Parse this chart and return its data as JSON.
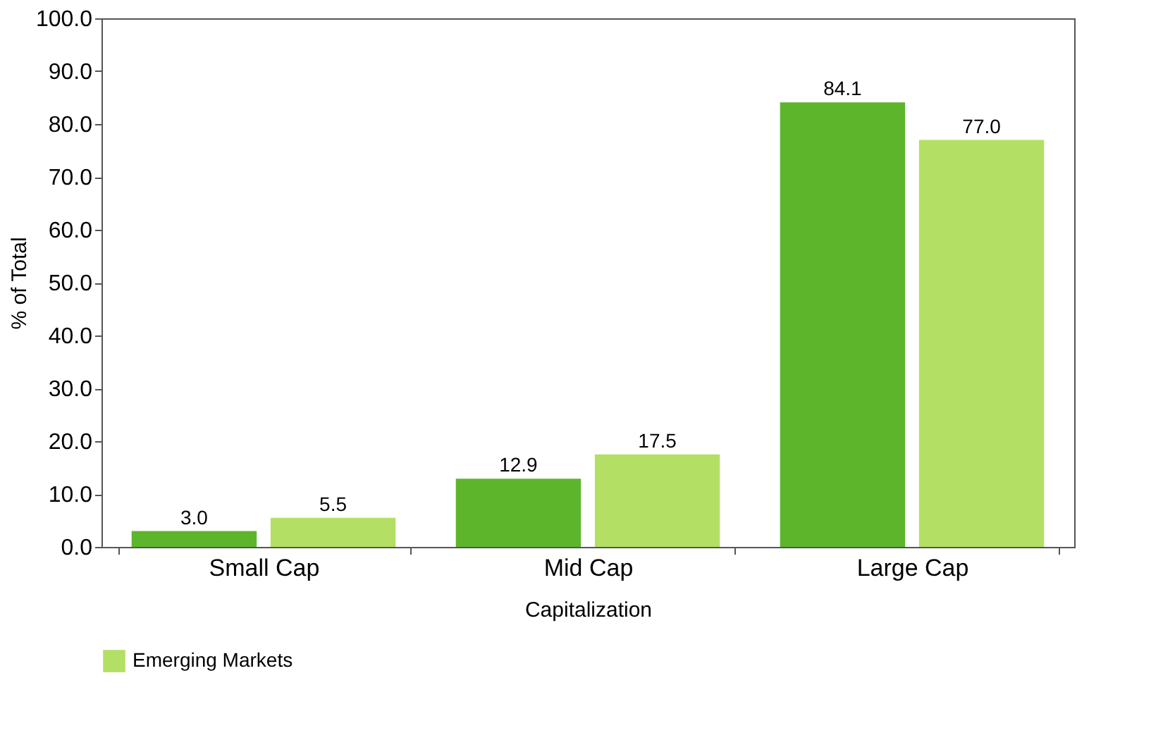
{
  "chart_data": {
    "type": "bar",
    "xlabel": "Capitalization",
    "ylabel": "% of Total",
    "categories": [
      "Small Cap",
      "Mid Cap",
      "Large Cap"
    ],
    "series": [
      {
        "color": "#5db52c",
        "values": [
          3.0,
          12.9,
          84.1
        ],
        "value_labels": [
          "3.0",
          "12.9",
          "84.1"
        ]
      },
      {
        "name": "Emerging Markets",
        "color": "#b3e064",
        "values": [
          5.5,
          17.5,
          77.0
        ],
        "value_labels": [
          "5.5",
          "17.5",
          "77.0"
        ]
      }
    ],
    "ylim": [
      0,
      100
    ],
    "yticks": [
      {
        "value": 0,
        "label": "0.0"
      },
      {
        "value": 10,
        "label": "10.0"
      },
      {
        "value": 20,
        "label": "20.0"
      },
      {
        "value": 30,
        "label": "30.0"
      },
      {
        "value": 40,
        "label": "40.0"
      },
      {
        "value": 50,
        "label": "50.0"
      },
      {
        "value": 60,
        "label": "60.0"
      },
      {
        "value": 70,
        "label": "70.0"
      },
      {
        "value": 80,
        "label": "80.0"
      },
      {
        "value": 90,
        "label": "90.0"
      },
      {
        "value": 100,
        "label": "100.0"
      }
    ],
    "grid": false,
    "legend": "bottom"
  }
}
